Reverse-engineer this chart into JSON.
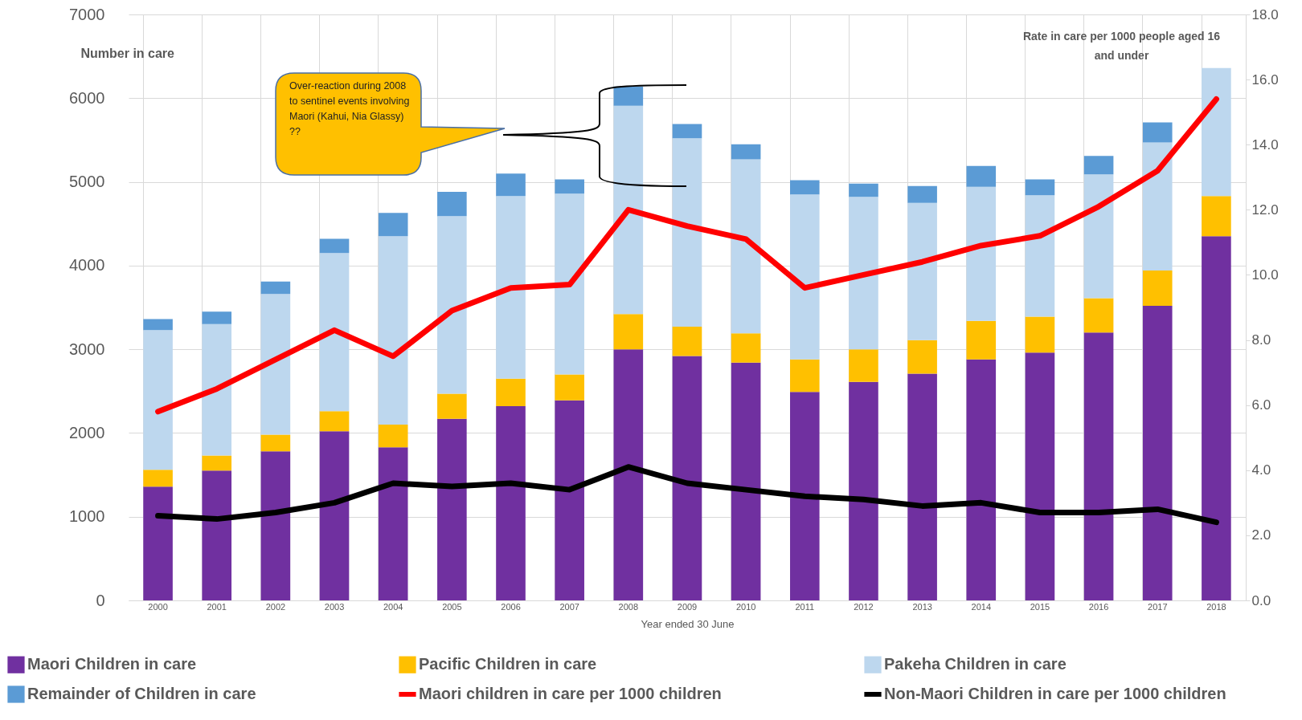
{
  "chart_data": {
    "type": "bar",
    "stacked": true,
    "categories": [
      "2000",
      "2001",
      "2002",
      "2003",
      "2004",
      "2005",
      "2006",
      "2007",
      "2008",
      "2009",
      "2010",
      "2011",
      "2012",
      "2013",
      "2014",
      "2015",
      "2016",
      "2017",
      "2018"
    ],
    "series": [
      {
        "name": "Maori Children in care",
        "color": "#7030a0",
        "values": [
          1360,
          1550,
          1780,
          2020,
          1830,
          2170,
          2320,
          2390,
          3000,
          2920,
          2840,
          2490,
          2610,
          2710,
          2880,
          2960,
          3200,
          3520,
          4350
        ]
      },
      {
        "name": "Pacific Children in care",
        "color": "#ffc000",
        "values": [
          200,
          180,
          200,
          240,
          270,
          300,
          330,
          310,
          420,
          350,
          350,
          390,
          390,
          400,
          460,
          430,
          410,
          420,
          480
        ]
      },
      {
        "name": "Pakeha Children in care",
        "color": "#bdd7ee",
        "values": [
          1670,
          1570,
          1680,
          1890,
          2250,
          2120,
          2180,
          2160,
          2490,
          2250,
          2080,
          1970,
          1820,
          1640,
          1600,
          1450,
          1480,
          1530,
          1530
        ]
      },
      {
        "name": "Remainder of Children in care",
        "color": "#5b9bd5",
        "values": [
          130,
          150,
          150,
          170,
          280,
          290,
          270,
          170,
          230,
          170,
          180,
          170,
          160,
          200,
          250,
          190,
          220,
          240,
          null
        ]
      },
      {
        "name": "Maori children in care per 1000 children",
        "type": "line",
        "axis": "y2",
        "color": "#ff0000",
        "values": [
          5.8,
          6.5,
          7.4,
          8.3,
          7.5,
          8.9,
          9.6,
          9.7,
          12.0,
          11.5,
          11.1,
          9.6,
          10.0,
          10.4,
          10.9,
          11.2,
          12.1,
          13.2,
          15.4
        ]
      },
      {
        "name": "Non-Maori Children in care per 1000 children",
        "type": "line",
        "axis": "y2",
        "color": "#000000",
        "values": [
          2.6,
          2.5,
          2.7,
          3.0,
          3.6,
          3.5,
          3.6,
          3.4,
          4.1,
          3.6,
          3.4,
          3.2,
          3.1,
          2.9,
          3.0,
          2.7,
          2.7,
          2.8,
          2.4
        ]
      }
    ],
    "xlabel": "Year ended 30 June",
    "ylabel": "Number in care",
    "y2label": "Rate in care per 1000 people aged 16 and under",
    "ylim": [
      0,
      7000
    ],
    "yticks": [
      0,
      1000,
      2000,
      3000,
      4000,
      5000,
      6000,
      7000
    ],
    "y2lim": [
      0,
      18
    ],
    "y2ticks": [
      {
        "value": 0,
        "label": "0.0"
      },
      {
        "value": 2,
        "label": "2.0"
      },
      {
        "value": 4,
        "label": "4.0"
      },
      {
        "value": 6,
        "label": "6.0"
      },
      {
        "value": 8,
        "label": "8.0"
      },
      {
        "value": 10,
        "label": "10.0"
      },
      {
        "value": 12,
        "label": "12.0"
      },
      {
        "value": 14,
        "label": "14.0"
      },
      {
        "value": 16,
        "label": "16.0"
      },
      {
        "value": 18,
        "label": "18.0"
      }
    ],
    "annotations": [
      "Over-reaction during 2008 to  sentinel events involving Maori  (Kahui, Nia Glassy) ??"
    ],
    "grid": true,
    "legend": "bottom"
  }
}
